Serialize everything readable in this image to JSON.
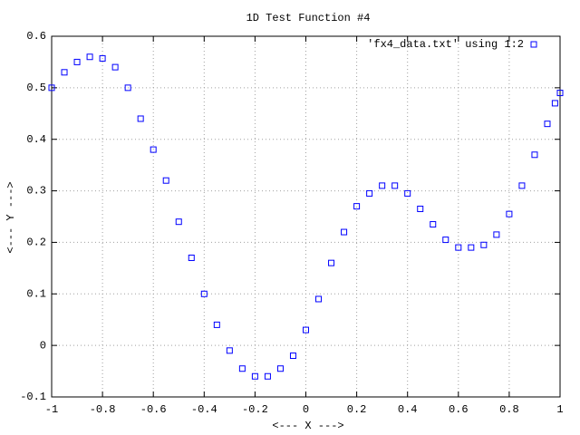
{
  "chart_data": {
    "type": "scatter",
    "title": "1D Test Function #4",
    "x_label": "<--- X --->",
    "y_label": "<--- Y --->",
    "xlim": [
      -1,
      1
    ],
    "ylim": [
      -0.1,
      0.6
    ],
    "xticks": [
      -1,
      -0.8,
      -0.6,
      -0.4,
      -0.2,
      0,
      0.2,
      0.4,
      0.6,
      0.8,
      1
    ],
    "yticks": [
      -0.1,
      0,
      0.1,
      0.2,
      0.3,
      0.4,
      0.5,
      0.6
    ],
    "grid": true,
    "legend": "top-right",
    "series": [
      {
        "name": "'fx4_data.txt' using 1:2",
        "color": "#0000ff",
        "x": [
          -1,
          -0.95,
          -0.9,
          -0.85,
          -0.8,
          -0.75,
          -0.7,
          -0.65,
          -0.6,
          -0.55,
          -0.5,
          -0.45,
          -0.4,
          -0.35,
          -0.3,
          -0.25,
          -0.2,
          -0.15,
          -0.1,
          -0.05,
          0,
          0.05,
          0.1,
          0.15,
          0.2,
          0.25,
          0.3,
          0.35,
          0.4,
          0.45,
          0.5,
          0.55,
          0.6,
          0.65,
          0.7,
          0.75,
          0.8,
          0.85,
          0.9,
          0.95,
          0.98,
          1
        ],
        "values": [
          0.5,
          0.53,
          0.55,
          0.56,
          0.557,
          0.54,
          0.5,
          0.44,
          0.38,
          0.32,
          0.24,
          0.17,
          0.1,
          0.04,
          -0.01,
          -0.045,
          -0.06,
          -0.06,
          -0.045,
          -0.02,
          0.03,
          0.09,
          0.16,
          0.22,
          0.27,
          0.295,
          0.31,
          0.31,
          0.295,
          0.265,
          0.235,
          0.205,
          0.19,
          0.19,
          0.195,
          0.215,
          0.255,
          0.31,
          0.37,
          0.43,
          0.47,
          0.49
        ]
      }
    ]
  }
}
